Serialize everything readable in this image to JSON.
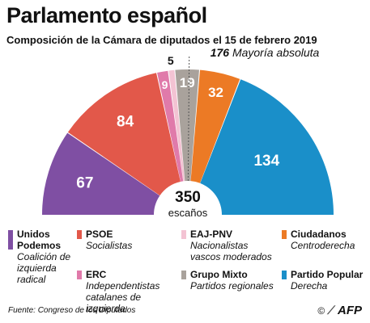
{
  "title": "Parlamento español",
  "subtitle": "Composición de la Cámara de diputados el 15 de febrero 2019",
  "chart_data": {
    "type": "hemicycle",
    "total_seats": 350,
    "total_number": "350",
    "total_label": "escaños",
    "majority": {
      "number": "176",
      "label": "Mayoría absoluta",
      "seats": 176
    },
    "series": [
      {
        "name": "Unidos Podemos",
        "seats": 67,
        "color": "#7f4fa3"
      },
      {
        "name": "PSOE",
        "seats": 84,
        "color": "#e2584a"
      },
      {
        "name": "ERC",
        "seats": 9,
        "color": "#e07aaa"
      },
      {
        "name": "EAJ-PNV",
        "seats": 5,
        "color": "#f3c3d3"
      },
      {
        "name": "Grupo Mixto",
        "seats": 19,
        "color": "#a9a29c"
      },
      {
        "name": "Ciudadanos",
        "seats": 32,
        "color": "#ec7a25"
      },
      {
        "name": "Partido Popular",
        "seats": 134,
        "color": "#1a8fc9"
      }
    ]
  },
  "legend": [
    {
      "name": "Unidos Podemos",
      "desc": "Coalición de izquierda radical",
      "color": "#7f4fa3"
    },
    {
      "name": "PSOE",
      "desc": "Socialistas",
      "color": "#e2584a"
    },
    {
      "name": "EAJ-PNV",
      "desc": "Nacionalistas vascos moderados",
      "color": "#f3c3d3"
    },
    {
      "name": "Ciudadanos",
      "desc": "Centroderecha",
      "color": "#ec7a25"
    },
    {
      "name": "ERC",
      "desc": "Independentistas catalanes de izquierda",
      "color": "#e07aaa"
    },
    {
      "name": "Grupo Mixto",
      "desc": "Partidos regionales",
      "color": "#a9a29c"
    },
    {
      "name": "Partido Popular",
      "desc": "Derecha",
      "color": "#1a8fc9"
    }
  ],
  "source": "Fuente: Congreso de los Diputados",
  "credit": {
    "copyright": "©",
    "agency": "AFP"
  }
}
